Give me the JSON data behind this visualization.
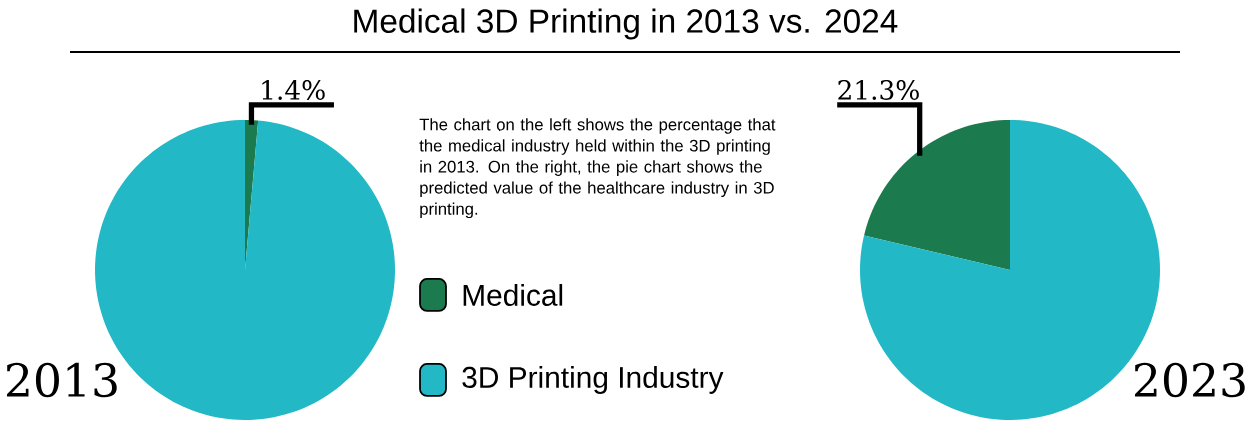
{
  "chart_data": [
    {
      "type": "pie",
      "title": "Medical 3D Printing in 2013 vs. 2024",
      "xlabel": "2013",
      "categories": [
        "Medical",
        "3D Printing Industry"
      ],
      "values": [
        1.4,
        98.6
      ],
      "value_labels": [
        "1.4%",
        null
      ],
      "colors": [
        "#1b7a4e",
        "#22b8c6"
      ],
      "legend": "right",
      "annotations": [
        "The chart on the left shows the percentage that the medical industry held within the 3D printing in 2013.  On the right, the pie chart shows the predicted value of the healthcare industry in 3D printing."
      ]
    },
    {
      "type": "pie",
      "xlabel": "2023",
      "categories": [
        null,
        null
      ],
      "values": [
        21.3,
        78.7
      ],
      "value_labels": [
        "21.3%",
        null
      ],
      "colors": [
        "#1b7a4e",
        "#22b8c6"
      ]
    }
  ]
}
